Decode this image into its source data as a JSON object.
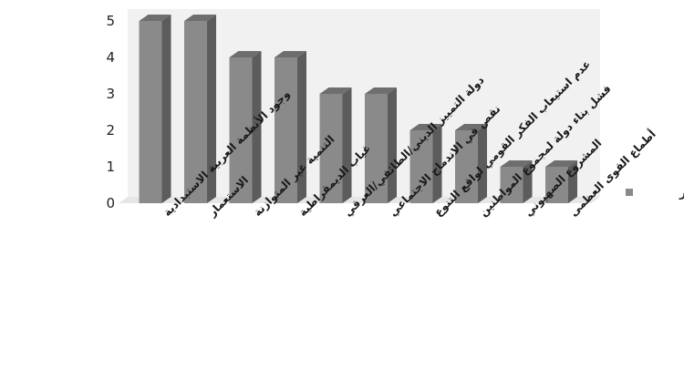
{
  "chart_data": {
    "type": "bar",
    "categories": [
      "وجود الأنظمة العربية الاستبدادية",
      "الاستعمار",
      "التنمية غير المتوازنة",
      "غياب الديمقراطية",
      "دولة التمييز الديني/الطائفي/العرقي",
      "نقص في الاندماج الاجتماعي",
      "عدم استيعاب الفكر القومي لواقع التنوع",
      "فشل بناء دولة لمجموع المواطنين",
      "المشروع الصهيوني",
      "أطماع القوى العظمى"
    ],
    "series": [
      {
        "name": "التكرار",
        "values": [
          5,
          5,
          4,
          4,
          3,
          3,
          2,
          2,
          1,
          1
        ]
      }
    ],
    "ylim": [
      0,
      5
    ],
    "yticks": [
      "0",
      "1",
      "2",
      "3",
      "4",
      "5"
    ],
    "grid": false,
    "legend_position": "right",
    "colors": {
      "bar": "#8a8a8a",
      "bar_top": "#6e6e6e",
      "bar_side": "#5c5c5c",
      "wall": "#f1f1f1"
    }
  }
}
